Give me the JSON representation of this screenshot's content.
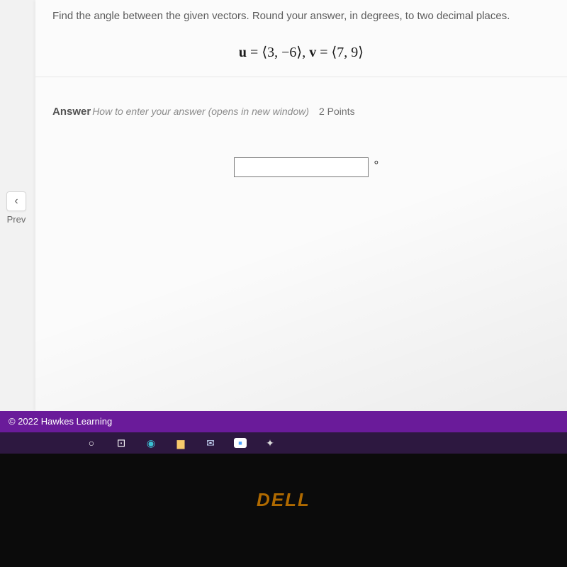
{
  "question": {
    "prompt": "Find the angle between the given vectors. Round your answer, in degrees, to two decimal places.",
    "vector_u_label": "u",
    "vector_u": "⟨3, −6⟩",
    "vector_v_label": "v",
    "vector_v": "⟨7, 9⟩",
    "equals": " = ",
    "sep": ", "
  },
  "answer_section": {
    "label": "Answer",
    "help_text": "How to enter your answer (opens in new window)",
    "points": "2 Points",
    "degree_symbol": "०"
  },
  "nav": {
    "prev_chevron": "‹",
    "prev_label": "Prev"
  },
  "footer": {
    "copyright": "© 2022 Hawkes Learning"
  },
  "taskbar": {
    "circle": "○",
    "cortana": "⊡",
    "edge": "◉",
    "explorer": "▆",
    "mail": "✉",
    "video": "■",
    "paint": "✦"
  },
  "branding": {
    "dell": "DELL"
  }
}
